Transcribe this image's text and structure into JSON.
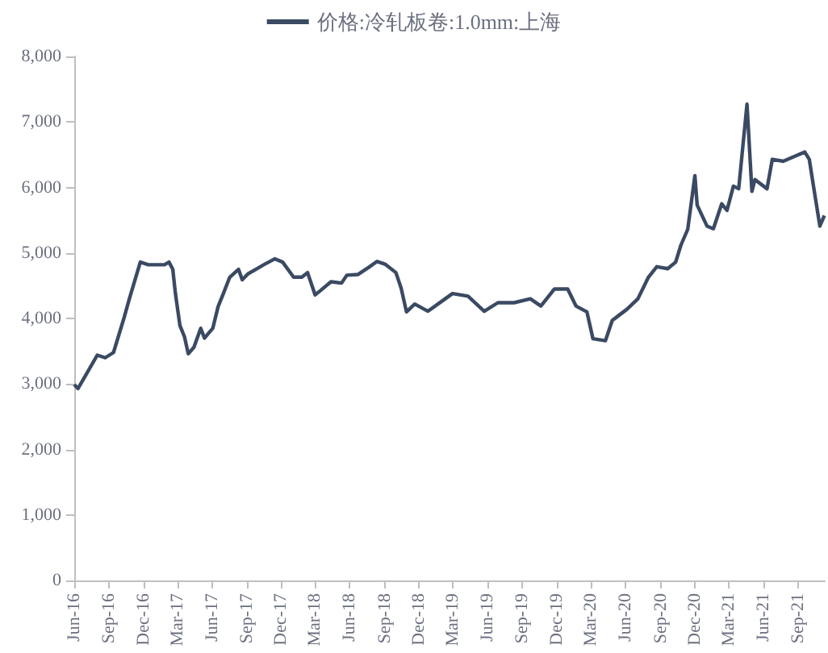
{
  "chart_data": {
    "type": "line",
    "legend": "top",
    "grid": false,
    "marker": "none",
    "line_style": "solid",
    "xlim": [
      "2016-06-01",
      "2021-11-10"
    ],
    "xticks": [
      {
        "value": "2016-06-01",
        "label": "Jun-16"
      },
      {
        "value": "2016-09-01",
        "label": "Sep-16"
      },
      {
        "value": "2016-12-01",
        "label": "Dec-16"
      },
      {
        "value": "2017-03-01",
        "label": "Mar-17"
      },
      {
        "value": "2017-06-01",
        "label": "Jun-17"
      },
      {
        "value": "2017-09-01",
        "label": "Sep-17"
      },
      {
        "value": "2017-12-01",
        "label": "Dec-17"
      },
      {
        "value": "2018-03-01",
        "label": "Mar-18"
      },
      {
        "value": "2018-06-01",
        "label": "Jun-18"
      },
      {
        "value": "2018-09-01",
        "label": "Sep-18"
      },
      {
        "value": "2018-12-01",
        "label": "Dec-18"
      },
      {
        "value": "2019-03-01",
        "label": "Mar-19"
      },
      {
        "value": "2019-06-01",
        "label": "Jun-19"
      },
      {
        "value": "2019-09-01",
        "label": "Sep-19"
      },
      {
        "value": "2019-12-01",
        "label": "Dec-19"
      },
      {
        "value": "2020-03-01",
        "label": "Mar-20"
      },
      {
        "value": "2020-06-01",
        "label": "Jun-20"
      },
      {
        "value": "2020-09-01",
        "label": "Sep-20"
      },
      {
        "value": "2020-12-01",
        "label": "Dec-20"
      },
      {
        "value": "2021-03-01",
        "label": "Mar-21"
      },
      {
        "value": "2021-06-01",
        "label": "Jun-21"
      },
      {
        "value": "2021-09-01",
        "label": "Sep-21"
      }
    ],
    "ylim": [
      0,
      8000
    ],
    "yticks": [
      {
        "value": 0,
        "label": "0"
      },
      {
        "value": 1000,
        "label": "1,000"
      },
      {
        "value": 2000,
        "label": "2,000"
      },
      {
        "value": 3000,
        "label": "3,000"
      },
      {
        "value": 4000,
        "label": "4,000"
      },
      {
        "value": 5000,
        "label": "5,000"
      },
      {
        "value": 6000,
        "label": "6,000"
      },
      {
        "value": 7000,
        "label": "7,000"
      },
      {
        "value": 8000,
        "label": "8,000"
      }
    ],
    "series": [
      {
        "name": "价格:冷轧板卷:1.0mm:上海",
        "color": "#3b4a63",
        "x": [
          "2016-06-01",
          "2016-06-11",
          "2016-06-25",
          "2016-08-01",
          "2016-08-22",
          "2016-09-13",
          "2016-10-11",
          "2016-10-25",
          "2016-11-23",
          "2016-12-14",
          "2017-01-26",
          "2017-02-07",
          "2017-02-17",
          "2017-02-24",
          "2017-03-08",
          "2017-03-20",
          "2017-03-30",
          "2017-04-14",
          "2017-05-02",
          "2017-05-12",
          "2017-06-03",
          "2017-06-17",
          "2017-07-01",
          "2017-07-18",
          "2017-08-10",
          "2017-08-20",
          "2017-09-04",
          "2017-09-25",
          "2017-10-16",
          "2017-11-14",
          "2017-12-05",
          "2018-01-03",
          "2018-01-25",
          "2018-02-09",
          "2018-03-01",
          "2018-03-14",
          "2018-04-12",
          "2018-05-10",
          "2018-05-24",
          "2018-06-22",
          "2018-07-21",
          "2018-08-12",
          "2018-09-02",
          "2018-10-01",
          "2018-10-15",
          "2018-10-29",
          "2018-11-20",
          "2018-12-25",
          "2019-01-30",
          "2019-02-28",
          "2019-04-10",
          "2019-05-23",
          "2019-06-28",
          "2019-08-10",
          "2019-09-22",
          "2019-10-20",
          "2019-11-25",
          "2019-12-30",
          "2020-01-21",
          "2020-02-19",
          "2020-03-06",
          "2020-04-08",
          "2020-04-26",
          "2020-06-04",
          "2020-07-03",
          "2020-07-31",
          "2020-08-22",
          "2020-09-20",
          "2020-10-11",
          "2020-10-25",
          "2020-11-12",
          "2020-12-01",
          "2020-12-07",
          "2021-01-02",
          "2021-01-19",
          "2021-02-10",
          "2021-02-24",
          "2021-03-13",
          "2021-03-27",
          "2021-04-18",
          "2021-05-01",
          "2021-05-09",
          "2021-06-10",
          "2021-06-24",
          "2021-07-23",
          "2021-08-28",
          "2021-09-18",
          "2021-09-30",
          "2021-10-10",
          "2021-10-28",
          "2021-11-09"
        ],
        "values": [
          2990,
          2930,
          3070,
          3440,
          3400,
          3480,
          4010,
          4300,
          4860,
          4820,
          4820,
          4860,
          4750,
          4380,
          3890,
          3720,
          3460,
          3560,
          3850,
          3700,
          3850,
          4180,
          4380,
          4630,
          4750,
          4590,
          4680,
          4750,
          4820,
          4910,
          4860,
          4630,
          4630,
          4700,
          4360,
          4420,
          4560,
          4540,
          4660,
          4670,
          4780,
          4870,
          4830,
          4700,
          4460,
          4100,
          4220,
          4110,
          4260,
          4380,
          4340,
          4110,
          4240,
          4240,
          4300,
          4190,
          4450,
          4450,
          4190,
          4100,
          3690,
          3660,
          3970,
          4140,
          4300,
          4630,
          4790,
          4760,
          4860,
          5120,
          5360,
          6180,
          5730,
          5410,
          5370,
          5750,
          5650,
          6020,
          5980,
          7270,
          5940,
          6120,
          5980,
          6430,
          6400,
          6490,
          6540,
          6430,
          6060,
          5410,
          5570
        ]
      }
    ]
  }
}
